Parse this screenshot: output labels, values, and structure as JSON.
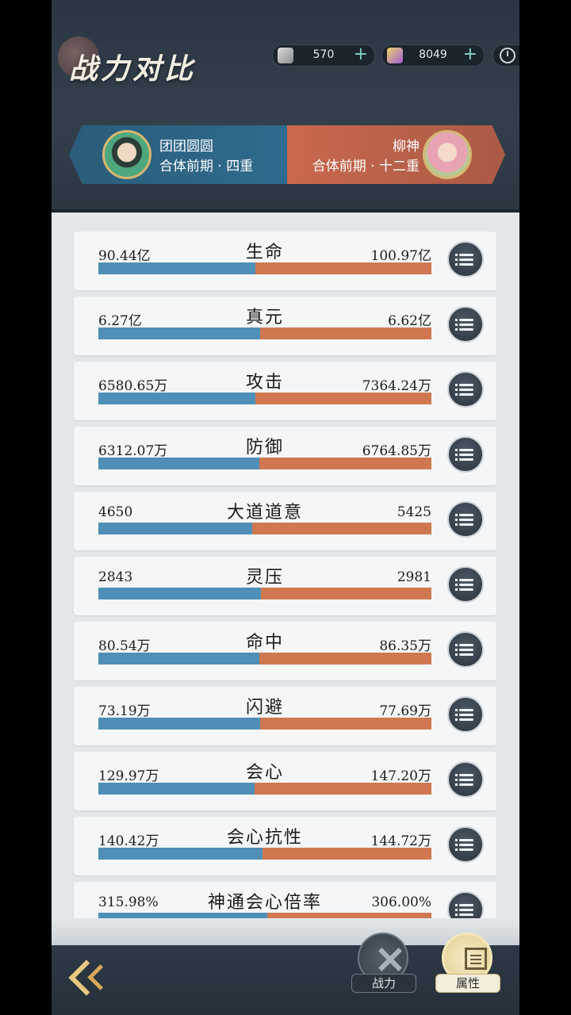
{
  "header": {
    "title": "战力对比",
    "resources": [
      {
        "icon": "scroll-icon",
        "value": "570"
      },
      {
        "icon": "gem-icon",
        "value": "8049"
      }
    ]
  },
  "versus": {
    "left_player": {
      "name": "团团圆圆",
      "rank": "合体前期 · 四重"
    },
    "right_player": {
      "name": "柳神",
      "rank": "合体前期 · 十二重"
    },
    "left_color": "#2f6b8d",
    "right_color": "#c9684d"
  },
  "stats": [
    {
      "label": "生命",
      "left": "90.44亿",
      "right": "100.97亿",
      "left_share": 0.472
    },
    {
      "label": "真元",
      "left": "6.27亿",
      "right": "6.62亿",
      "left_share": 0.486
    },
    {
      "label": "攻击",
      "left": "6580.65万",
      "right": "7364.24万",
      "left_share": 0.472
    },
    {
      "label": "防御",
      "left": "6312.07万",
      "right": "6764.85万",
      "left_share": 0.483
    },
    {
      "label": "大道道意",
      "left": "4650",
      "right": "5425",
      "left_share": 0.462
    },
    {
      "label": "灵压",
      "left": "2843",
      "right": "2981",
      "left_share": 0.488
    },
    {
      "label": "命中",
      "left": "80.54万",
      "right": "86.35万",
      "left_share": 0.483
    },
    {
      "label": "闪避",
      "left": "73.19万",
      "right": "77.69万",
      "left_share": 0.485
    },
    {
      "label": "会心",
      "left": "129.97万",
      "right": "147.20万",
      "left_share": 0.469
    },
    {
      "label": "会心抗性",
      "left": "140.42万",
      "right": "144.72万",
      "left_share": 0.492
    },
    {
      "label": "神通会心倍率",
      "left": "315.98%",
      "right": "306.00%",
      "left_share": 0.508
    }
  ],
  "nav": {
    "power_label": "战力",
    "attr_label": "属性"
  }
}
